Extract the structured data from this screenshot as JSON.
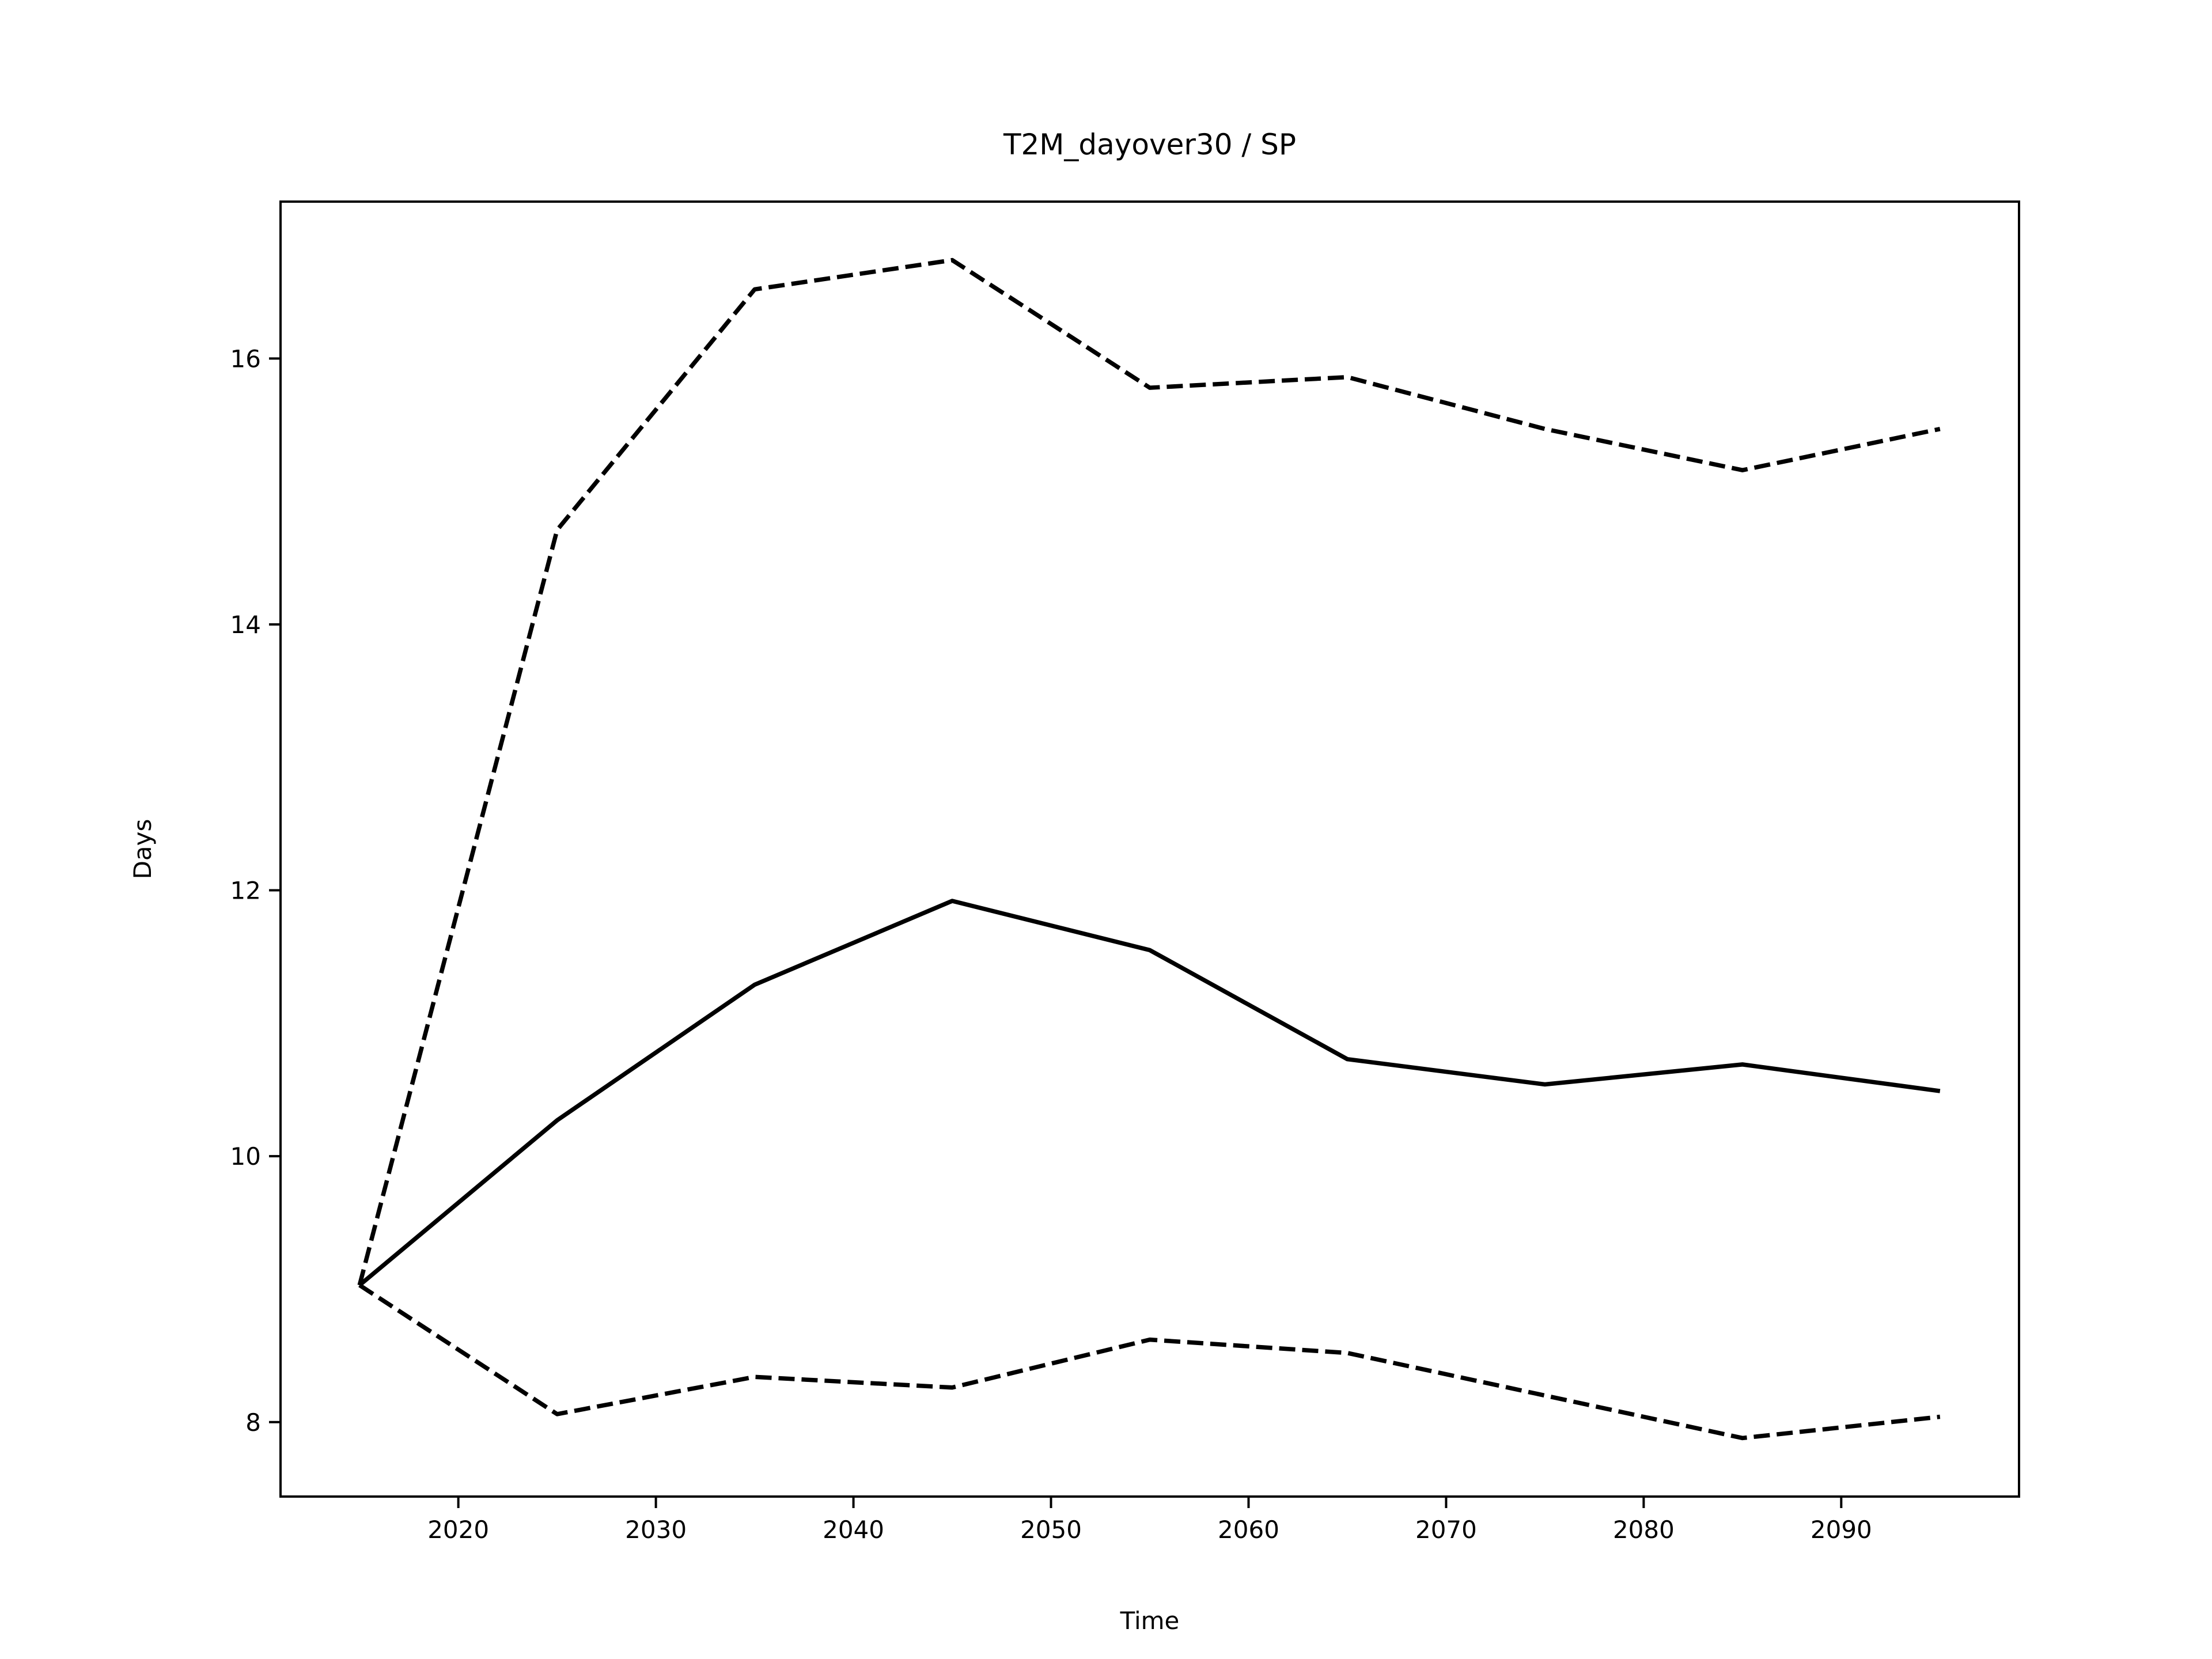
{
  "chart_data": {
    "type": "line",
    "title": "T2M_dayover30 / SP",
    "xlabel": "Time",
    "ylabel": "Days",
    "x": [
      2015,
      2025,
      2035,
      2045,
      2055,
      2065,
      2075,
      2085,
      2095
    ],
    "series": [
      {
        "color": "#000000",
        "dashed": false,
        "values": [
          9.03,
          10.27,
          11.29,
          11.92,
          11.55,
          10.73,
          10.54,
          10.69,
          10.49
        ]
      },
      {
        "color": "#000000",
        "dashed": true,
        "values": [
          9.03,
          14.71,
          16.52,
          16.74,
          15.78,
          15.86,
          15.47,
          15.16,
          15.47
        ]
      },
      {
        "color": "#000000",
        "dashed": true,
        "values": [
          9.03,
          8.06,
          8.34,
          8.26,
          8.62,
          8.52,
          8.2,
          7.88,
          8.04
        ]
      }
    ],
    "xlim": [
      2011,
      2099
    ],
    "xticks": [
      2020,
      2030,
      2040,
      2050,
      2060,
      2070,
      2080,
      2090
    ],
    "ylim": [
      7.44,
      17.18
    ],
    "yticks": [
      8,
      10,
      12,
      14,
      16
    ],
    "grid": false
  }
}
